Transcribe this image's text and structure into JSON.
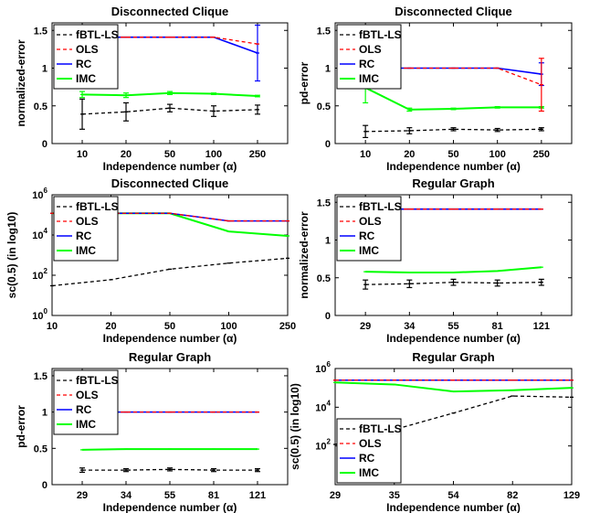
{
  "chart_data": [
    {
      "type": "line",
      "title": "Disconnected Clique",
      "xlabel": "Independence number (α)",
      "ylabel": "normalized-error",
      "categories": [
        "10",
        "20",
        "50",
        "100",
        "250"
      ],
      "ylim": [
        0,
        1.6
      ],
      "yticks": [
        "0",
        "0.5",
        "1",
        "1.5"
      ],
      "legend": "top-left",
      "series": [
        {
          "name": "fBTL-LS",
          "values": [
            0.39,
            0.42,
            0.47,
            0.43,
            0.45
          ],
          "errors": [
            0.2,
            0.12,
            0.05,
            0.07,
            0.06
          ]
        },
        {
          "name": "OLS",
          "values": [
            1.41,
            1.41,
            1.41,
            1.41,
            1.32
          ]
        },
        {
          "name": "RC",
          "values": [
            1.41,
            1.41,
            1.41,
            1.41,
            1.2
          ],
          "errors": [
            0,
            0,
            0,
            0,
            0.37
          ]
        },
        {
          "name": "IMC",
          "values": [
            0.65,
            0.64,
            0.67,
            0.66,
            0.63
          ],
          "errors": [
            0.04,
            0.03,
            0.02,
            0.01,
            0.01
          ]
        }
      ]
    },
    {
      "type": "line",
      "title": "Disconnected Clique",
      "xlabel": "Independence number (α)",
      "ylabel": "pd-error",
      "categories": [
        "10",
        "20",
        "50",
        "100",
        "250"
      ],
      "ylim": [
        0,
        1.6
      ],
      "yticks": [
        "0",
        "0.5",
        "1",
        "1.5"
      ],
      "legend": "top-left",
      "series": [
        {
          "name": "fBTL-LS",
          "values": [
            0.16,
            0.17,
            0.19,
            0.18,
            0.19
          ],
          "errors": [
            0.08,
            0.04,
            0.02,
            0.02,
            0.02
          ]
        },
        {
          "name": "OLS",
          "values": [
            1.0,
            1.0,
            1.0,
            1.0,
            0.78
          ],
          "errors": [
            0,
            0,
            0,
            0,
            0.35
          ]
        },
        {
          "name": "RC",
          "values": [
            1.0,
            1.0,
            1.0,
            1.0,
            0.92
          ],
          "errors": [
            0,
            0,
            0,
            0,
            0.15
          ]
        },
        {
          "name": "IMC",
          "values": [
            0.74,
            0.45,
            0.46,
            0.48,
            0.48
          ],
          "errors": [
            0.2,
            0.02,
            0.01,
            0.01,
            0.01
          ]
        }
      ]
    },
    {
      "type": "line",
      "title": "Disconnected Clique",
      "xlabel": "Independence number (α)",
      "ylabel": "sc(0.5) (in log10)",
      "x": [
        10,
        20,
        50,
        100,
        250
      ],
      "xticks": [
        "10",
        "20",
        "50",
        "100",
        "250"
      ],
      "yscale": "log",
      "ylim": [
        1,
        1000000
      ],
      "yticks": [
        "10^0",
        "10^2",
        "10^4",
        "10^6"
      ],
      "legend": "top-left",
      "series": [
        {
          "name": "fBTL-LS",
          "values": [
            30,
            60,
            200,
            400,
            700
          ]
        },
        {
          "name": "OLS",
          "values": [
            120000,
            120000,
            120000,
            50000,
            50000
          ]
        },
        {
          "name": "RC",
          "values": [
            120000,
            120000,
            120000,
            50000,
            50000
          ]
        },
        {
          "name": "IMC",
          "values": [
            120000,
            120000,
            120000,
            15000,
            9000
          ]
        }
      ]
    },
    {
      "type": "line",
      "title": "Regular Graph",
      "xlabel": "Independence number (α)",
      "ylabel": "normalized-error",
      "categories": [
        "29",
        "34",
        "55",
        "81",
        "121"
      ],
      "ylim": [
        0,
        1.6
      ],
      "yticks": [
        "0",
        "0.5",
        "1",
        "1.5"
      ],
      "legend": "top-left",
      "series": [
        {
          "name": "fBTL-LS",
          "values": [
            0.41,
            0.42,
            0.44,
            0.43,
            0.44
          ],
          "errors": [
            0.06,
            0.05,
            0.04,
            0.04,
            0.04
          ]
        },
        {
          "name": "OLS",
          "values": [
            1.41,
            1.41,
            1.41,
            1.41,
            1.41
          ]
        },
        {
          "name": "RC",
          "values": [
            1.41,
            1.41,
            1.41,
            1.41,
            1.41
          ]
        },
        {
          "name": "IMC",
          "values": [
            0.58,
            0.57,
            0.57,
            0.59,
            0.64
          ]
        }
      ]
    },
    {
      "type": "line",
      "title": "Regular Graph",
      "xlabel": "Independence number (α)",
      "ylabel": "pd-error",
      "categories": [
        "29",
        "34",
        "55",
        "81",
        "121"
      ],
      "ylim": [
        0,
        1.6
      ],
      "yticks": [
        "0",
        "0.5",
        "1",
        "1.5"
      ],
      "legend": "top-left",
      "series": [
        {
          "name": "fBTL-LS",
          "values": [
            0.2,
            0.2,
            0.21,
            0.2,
            0.2
          ],
          "errors": [
            0.03,
            0.02,
            0.02,
            0.02,
            0.02
          ]
        },
        {
          "name": "OLS",
          "values": [
            1.0,
            1.0,
            1.0,
            1.0,
            1.0
          ]
        },
        {
          "name": "RC",
          "values": [
            1.0,
            1.0,
            1.0,
            1.0,
            1.0
          ]
        },
        {
          "name": "IMC",
          "values": [
            0.48,
            0.49,
            0.49,
            0.49,
            0.49
          ]
        }
      ]
    },
    {
      "type": "line",
      "title": "Regular Graph",
      "xlabel": "Independence number (α)",
      "ylabel": "sc(0.5) (in log10)",
      "x": [
        29,
        35,
        54,
        82,
        129
      ],
      "xticks": [
        "29",
        "35",
        "54",
        "82",
        "129"
      ],
      "ylim": [
        1,
        1000000
      ],
      "yticks": [
        "10^2",
        "10^4",
        "10^6"
      ],
      "legend": "bottom-left",
      "series": [
        {
          "name": "fBTL-LS",
          "values": [
            120,
            700,
            5000,
            38000,
            33000
          ]
        },
        {
          "name": "OLS",
          "values": [
            250000,
            250000,
            250000,
            250000,
            250000
          ]
        },
        {
          "name": "RC",
          "values": [
            250000,
            250000,
            250000,
            250000,
            250000
          ]
        },
        {
          "name": "IMC",
          "values": [
            190000,
            150000,
            65000,
            75000,
            100000
          ]
        }
      ]
    }
  ]
}
